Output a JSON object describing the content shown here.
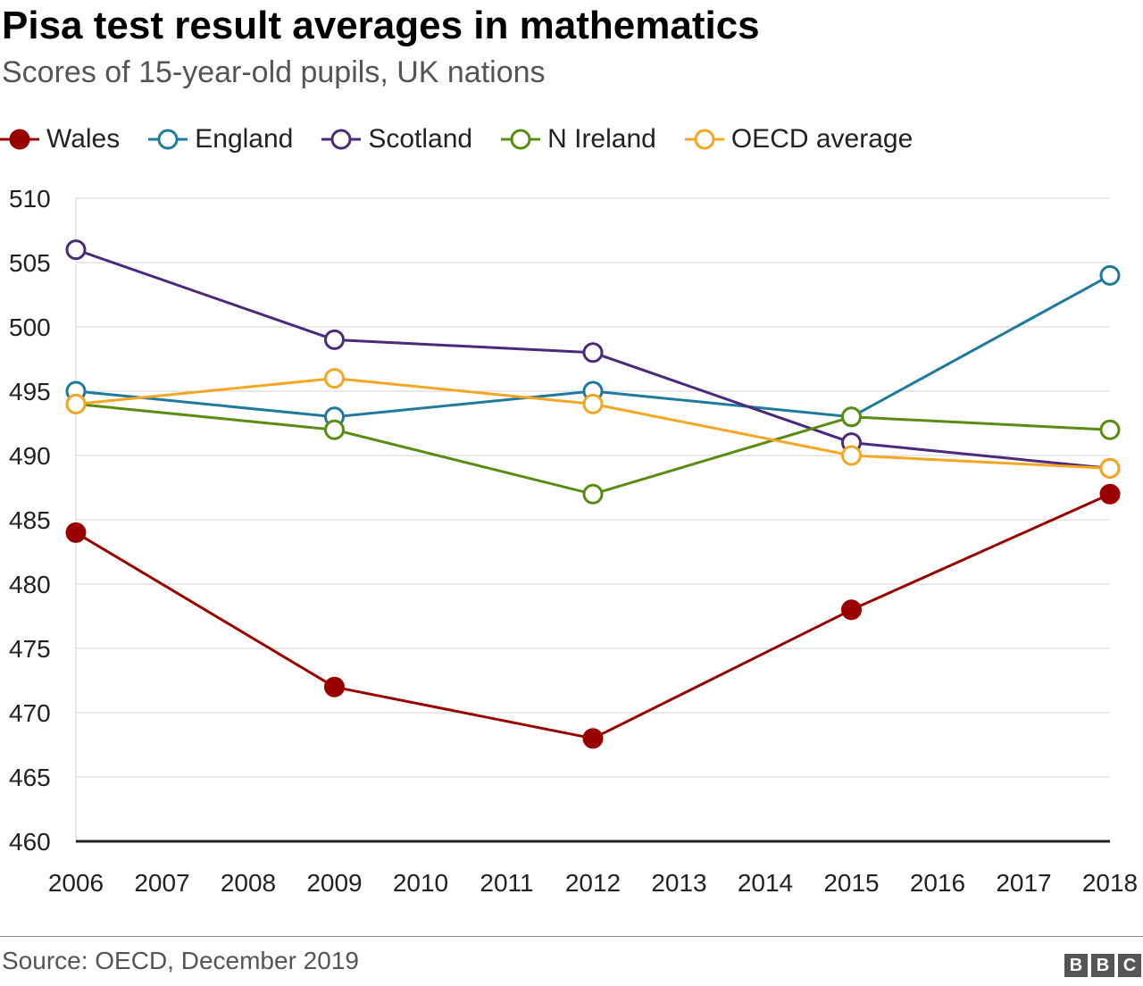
{
  "chart_data": {
    "type": "line",
    "title": "Pisa test result averages in mathematics",
    "subtitle": "Scores of 15-year-old pupils, UK nations",
    "x": [
      2006,
      2009,
      2012,
      2015,
      2018
    ],
    "x_ticks": [
      "2006",
      "2007",
      "2008",
      "2009",
      "2010",
      "2011",
      "2012",
      "2013",
      "2014",
      "2015",
      "2016",
      "2017",
      "2018"
    ],
    "xlim": [
      2006,
      2018
    ],
    "y_ticks": [
      "460",
      "465",
      "470",
      "475",
      "480",
      "485",
      "490",
      "495",
      "500",
      "505",
      "510"
    ],
    "ylim": [
      460,
      510
    ],
    "grid": true,
    "legend_position": "top",
    "series": [
      {
        "name": "Wales",
        "color": "#990000",
        "marker": "filled",
        "values": [
          484,
          472,
          468,
          478,
          487
        ]
      },
      {
        "name": "England",
        "color": "#1f7a9c",
        "marker": "hollow",
        "values": [
          495,
          493,
          495,
          493,
          504
        ]
      },
      {
        "name": "Scotland",
        "color": "#4b2a7b",
        "marker": "hollow",
        "values": [
          506,
          499,
          498,
          491,
          489
        ]
      },
      {
        "name": "N Ireland",
        "color": "#5a8c12",
        "marker": "hollow",
        "values": [
          494,
          492,
          487,
          493,
          492
        ]
      },
      {
        "name": "OECD average",
        "color": "#f5a623",
        "marker": "hollow",
        "values": [
          494,
          496,
          494,
          490,
          489
        ]
      }
    ]
  },
  "footer": {
    "source": "Source: OECD, December 2019",
    "logo_letters": [
      "B",
      "B",
      "C"
    ]
  }
}
